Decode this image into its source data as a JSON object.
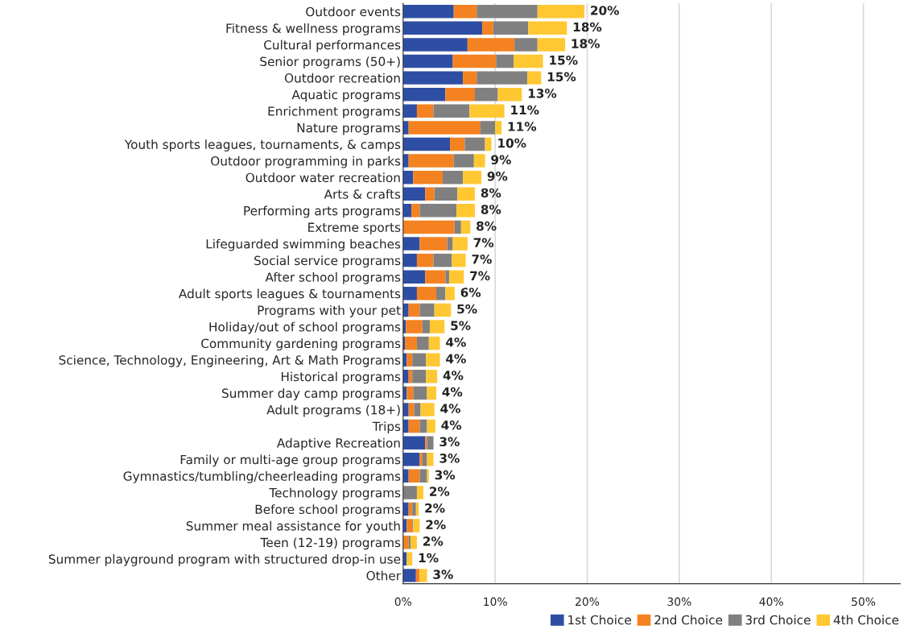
{
  "chart_data": {
    "type": "bar",
    "orientation": "horizontal",
    "stacked": true,
    "categories": [
      "Outdoor events",
      "Fitness & wellness programs",
      "Cultural performances",
      "Senior programs (50+)",
      "Outdoor recreation",
      "Aquatic programs",
      "Enrichment programs",
      "Nature programs",
      "Youth sports leagues, tournaments, & camps",
      "Outdoor programming in parks",
      "Outdoor water recreation",
      "Arts & crafts",
      "Performing arts programs",
      "Extreme sports",
      "Lifeguarded swimming beaches",
      "Social service programs",
      "After school programs",
      "Adult sports leagues & tournaments",
      "Programs with your pet",
      "Holiday/out of school programs",
      "Community gardening programs",
      "Science, Technology, Engineering, Art & Math Programs",
      "Historical programs",
      "Summer day camp programs",
      "Adult programs (18+)",
      "Trips",
      "Adaptive Recreation",
      "Family or multi-age group programs",
      "Gymnastics/tumbling/cheerleading programs",
      "Technology programs",
      "Before school programs",
      "Summer meal assistance for youth",
      "Teen (12-19) programs",
      "Summer playground program with structured drop-in use",
      "Other"
    ],
    "series": [
      {
        "name": "1st Choice",
        "color": "#2e4ea3",
        "values": [
          5.5,
          8.6,
          7.0,
          5.4,
          6.5,
          4.6,
          1.5,
          0.6,
          5.1,
          0.6,
          1.1,
          2.4,
          0.9,
          0,
          1.8,
          1.5,
          2.4,
          1.5,
          0.6,
          0.3,
          0.2,
          0.4,
          0.6,
          0.4,
          0.6,
          0.6,
          2.4,
          1.8,
          0.6,
          0,
          0.6,
          0.4,
          0,
          0.4,
          1.4
        ]
      },
      {
        "name": "2nd Choice",
        "color": "#f58220",
        "values": [
          2.5,
          1.2,
          5.1,
          4.7,
          1.5,
          3.2,
          1.8,
          7.8,
          1.6,
          4.9,
          3.2,
          1.0,
          0.9,
          5.6,
          3.0,
          1.8,
          2.2,
          2.1,
          1.2,
          1.8,
          1.3,
          0.6,
          0.4,
          0.7,
          0.6,
          1.2,
          0.2,
          0.3,
          1.2,
          0,
          0.4,
          0.6,
          0.6,
          0,
          0.4
        ]
      },
      {
        "name": "3rd Choice",
        "color": "#808080",
        "values": [
          6.6,
          3.8,
          2.5,
          1.9,
          5.5,
          2.5,
          3.9,
          1.6,
          2.2,
          2.2,
          2.2,
          2.5,
          4.0,
          0.7,
          0.6,
          2.0,
          0.4,
          1.0,
          1.6,
          0.8,
          1.3,
          1.5,
          1.5,
          1.5,
          0.7,
          0.8,
          0.7,
          0.5,
          0.8,
          1.5,
          0.4,
          0.1,
          0.2,
          0,
          0
        ]
      },
      {
        "name": "4th Choice",
        "color": "#ffc832",
        "values": [
          5.1,
          4.2,
          3.0,
          3.2,
          1.5,
          2.6,
          3.8,
          0.7,
          0.7,
          1.2,
          2.0,
          1.9,
          2.0,
          1.0,
          1.6,
          1.5,
          1.6,
          1.0,
          1.8,
          1.6,
          1.2,
          1.5,
          1.2,
          1.0,
          1.5,
          0.9,
          0,
          0.7,
          0.2,
          0.7,
          0.3,
          0.7,
          0.7,
          0.6,
          0.8
        ]
      }
    ],
    "totals": [
      "20%",
      "18%",
      "18%",
      "15%",
      "15%",
      "13%",
      "11%",
      "11%",
      "10%",
      "9%",
      "9%",
      "8%",
      "8%",
      "8%",
      "7%",
      "7%",
      "7%",
      "6%",
      "5%",
      "5%",
      "4%",
      "4%",
      "4%",
      "4%",
      "4%",
      "4%",
      "3%",
      "3%",
      "3%",
      "2%",
      "2%",
      "2%",
      "2%",
      "1%",
      "3%"
    ],
    "xlim": [
      0,
      54
    ],
    "xticks": [
      {
        "value": 0,
        "label": "0%"
      },
      {
        "value": 10,
        "label": "10%"
      },
      {
        "value": 20,
        "label": "20%"
      },
      {
        "value": 30,
        "label": "30%"
      },
      {
        "value": 40,
        "label": "40%"
      },
      {
        "value": 50,
        "label": "50%"
      }
    ],
    "grid": "x",
    "legend": "bottom right"
  }
}
